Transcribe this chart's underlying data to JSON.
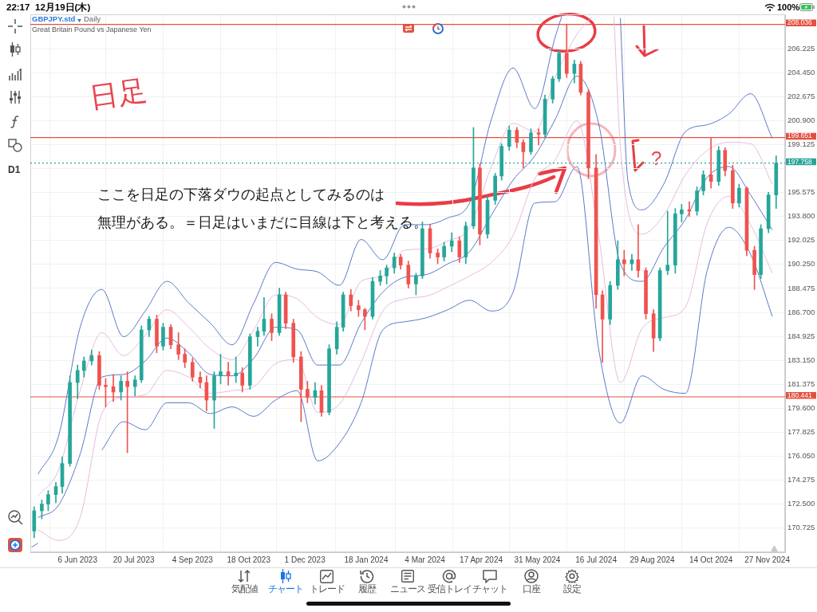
{
  "chart_data": {
    "type": "candlestick",
    "title": "GBPJPY.std",
    "subtitle": "Great Britain Pound vs Japanese Yen",
    "annotations": [
      "Daily",
      "日足",
      "ここを日足の下落ダウの起点としてみるのは",
      "無理がある。＝日足はいまだに目線は下と考える。",
      "?",
      "22:17",
      "12月19日(木)",
      "100%",
      "D1",
      "気配値",
      "チャート",
      "トレード",
      "履歴",
      "ニュース",
      "受信トレイ",
      "チャット",
      "口座",
      "設定"
    ],
    "x": [
      "2023-05-03",
      "2023-05-09",
      "2023-05-14",
      "2023-05-20",
      "2023-05-25",
      "2023-05-31",
      "2023-06-06",
      "2023-06-11",
      "2023-06-17",
      "2023-06-23",
      "2023-06-28",
      "2023-07-04",
      "2023-07-10",
      "2023-07-15",
      "2023-07-21",
      "2023-07-26",
      "2023-08-01",
      "2023-08-07",
      "2023-08-12",
      "2023-08-18",
      "2023-08-24",
      "2023-08-29",
      "2023-09-04",
      "2023-09-10",
      "2023-09-15",
      "2023-09-21",
      "2023-09-26",
      "2023-10-02",
      "2023-10-08",
      "2023-10-13",
      "2023-10-19",
      "2023-10-25",
      "2023-10-30",
      "2023-11-05",
      "2023-11-11",
      "2023-11-16",
      "2023-11-22",
      "2023-11-28",
      "2023-12-03",
      "2023-12-09",
      "2023-12-14",
      "2023-12-20",
      "2023-12-26",
      "2023-12-31",
      "2024-01-06",
      "2024-01-12",
      "2024-01-17",
      "2024-01-23",
      "2024-01-29",
      "2024-02-03",
      "2024-02-09",
      "2024-02-14",
      "2024-02-20",
      "2024-02-26",
      "2024-03-02",
      "2024-03-08",
      "2024-03-14",
      "2024-03-19",
      "2024-03-25",
      "2024-03-31",
      "2024-04-05",
      "2024-04-11",
      "2024-04-16",
      "2024-04-22",
      "2024-04-28",
      "2024-05-03",
      "2024-05-09",
      "2024-05-15",
      "2024-05-20",
      "2024-05-26",
      "2024-06-01",
      "2024-06-06",
      "2024-06-12",
      "2024-06-17",
      "2024-06-23",
      "2024-06-29",
      "2024-07-04",
      "2024-07-10",
      "2024-07-16",
      "2024-07-21",
      "2024-07-27",
      "2024-08-02",
      "2024-08-07",
      "2024-08-13",
      "2024-08-18",
      "2024-08-24",
      "2024-08-30",
      "2024-09-04",
      "2024-09-10",
      "2024-09-16",
      "2024-09-21",
      "2024-09-27",
      "2024-10-03",
      "2024-10-08",
      "2024-10-14",
      "2024-10-20",
      "2024-10-25",
      "2024-10-31",
      "2024-11-05",
      "2024-11-11",
      "2024-11-17",
      "2024-11-22",
      "2024-11-28",
      "2024-12-04"
    ],
    "ohlc": [
      [
        170.5,
        172.3,
        170.0,
        172.0
      ],
      [
        172.0,
        172.8,
        171.4,
        172.5
      ],
      [
        172.5,
        173.5,
        172.0,
        173.2
      ],
      [
        173.2,
        174.1,
        172.6,
        173.8
      ],
      [
        173.8,
        176.0,
        173.3,
        175.5
      ],
      [
        175.5,
        182.0,
        175.3,
        181.5
      ],
      [
        181.5,
        182.8,
        180.3,
        182.4
      ],
      [
        182.4,
        183.4,
        181.9,
        183.1
      ],
      [
        183.1,
        183.9,
        182.8,
        183.5
      ],
      [
        183.5,
        183.8,
        181.0,
        181.3
      ],
      [
        181.3,
        181.8,
        179.7,
        181.2
      ],
      [
        181.2,
        182.1,
        180.1,
        180.8
      ],
      [
        180.8,
        182.0,
        180.2,
        181.6
      ],
      [
        181.6,
        182.3,
        176.3,
        181.2
      ],
      [
        181.2,
        182.0,
        180.5,
        181.7
      ],
      [
        181.7,
        185.7,
        181.5,
        185.4
      ],
      [
        185.4,
        186.4,
        184.9,
        186.2
      ],
      [
        186.2,
        186.5,
        183.7,
        184.2
      ],
      [
        184.2,
        185.9,
        183.9,
        185.6
      ],
      [
        185.6,
        185.8,
        184.0,
        184.3
      ],
      [
        184.3,
        185.2,
        183.2,
        183.6
      ],
      [
        183.6,
        184.0,
        182.6,
        183.0
      ],
      [
        183.0,
        183.3,
        181.6,
        181.9
      ],
      [
        181.9,
        182.3,
        181.1,
        181.5
      ],
      [
        181.5,
        182.0,
        179.4,
        180.2
      ],
      [
        180.2,
        182.3,
        178.1,
        182.0
      ],
      [
        182.0,
        183.6,
        181.4,
        182.3
      ],
      [
        182.3,
        183.0,
        181.3,
        182.0
      ],
      [
        182.0,
        183.4,
        181.5,
        182.2
      ],
      [
        182.2,
        182.6,
        180.8,
        181.3
      ],
      [
        181.3,
        185.1,
        181.0,
        184.9
      ],
      [
        184.9,
        185.6,
        184.2,
        185.3
      ],
      [
        185.3,
        187.8,
        185.0,
        186.2
      ],
      [
        186.2,
        186.6,
        184.6,
        185.2
      ],
      [
        185.2,
        188.5,
        185.0,
        188.0
      ],
      [
        188.0,
        188.2,
        185.5,
        185.9
      ],
      [
        185.9,
        186.2,
        183.0,
        183.4
      ],
      [
        183.4,
        183.8,
        178.6,
        181.0
      ],
      [
        181.0,
        181.6,
        180.0,
        180.4
      ],
      [
        180.4,
        181.5,
        179.9,
        180.9
      ],
      [
        180.9,
        181.3,
        179.0,
        179.3
      ],
      [
        179.3,
        184.3,
        179.1,
        184.0
      ],
      [
        184.0,
        186.0,
        183.6,
        185.6
      ],
      [
        185.6,
        188.2,
        185.3,
        188.0
      ],
      [
        188.0,
        188.4,
        186.8,
        187.2
      ],
      [
        187.2,
        187.6,
        186.4,
        186.9
      ],
      [
        186.9,
        187.0,
        185.4,
        186.4
      ],
      [
        186.4,
        189.3,
        186.2,
        189.0
      ],
      [
        189.0,
        189.8,
        188.7,
        189.4
      ],
      [
        189.4,
        190.2,
        188.8,
        190.0
      ],
      [
        190.0,
        191.1,
        189.6,
        190.8
      ],
      [
        190.8,
        191.0,
        189.9,
        190.2
      ],
      [
        190.2,
        190.5,
        188.5,
        188.8
      ],
      [
        188.8,
        189.6,
        188.0,
        189.4
      ],
      [
        189.4,
        193.4,
        189.2,
        192.9
      ],
      [
        192.9,
        193.2,
        190.7,
        191.1
      ],
      [
        191.1,
        191.4,
        190.3,
        190.8
      ],
      [
        190.8,
        191.9,
        190.5,
        191.6
      ],
      [
        191.6,
        192.6,
        191.2,
        192.0
      ],
      [
        192.0,
        192.3,
        190.4,
        190.8
      ],
      [
        190.8,
        193.4,
        190.3,
        193.1
      ],
      [
        193.1,
        200.4,
        192.9,
        197.4
      ],
      [
        197.4,
        197.7,
        191.7,
        192.5
      ],
      [
        192.5,
        195.3,
        192.2,
        195.0
      ],
      [
        195.0,
        197.0,
        194.7,
        196.8
      ],
      [
        196.8,
        199.2,
        196.5,
        199.0
      ],
      [
        199.0,
        200.5,
        198.7,
        200.2
      ],
      [
        200.2,
        200.4,
        198.9,
        199.3
      ],
      [
        199.3,
        199.5,
        197.4,
        198.6
      ],
      [
        198.6,
        200.3,
        198.4,
        200.0
      ],
      [
        200.0,
        200.3,
        199.1,
        199.9
      ],
      [
        199.9,
        202.8,
        199.7,
        202.5
      ],
      [
        202.5,
        204.2,
        202.2,
        204.0
      ],
      [
        204.0,
        206.1,
        203.8,
        205.9
      ],
      [
        205.9,
        208.0,
        204.1,
        204.4
      ],
      [
        204.4,
        205.4,
        203.7,
        205.1
      ],
      [
        205.1,
        205.3,
        202.8,
        203.0
      ],
      [
        203.0,
        203.2,
        196.6,
        197.4
      ],
      [
        197.4,
        198.4,
        187.0,
        188.0
      ],
      [
        188.0,
        188.3,
        183.0,
        186.2
      ],
      [
        186.2,
        189.0,
        185.8,
        188.7
      ],
      [
        188.7,
        192.0,
        188.4,
        190.6
      ],
      [
        190.6,
        191.3,
        189.4,
        190.3
      ],
      [
        190.3,
        191.0,
        189.8,
        190.6
      ],
      [
        190.6,
        193.2,
        189.3,
        189.8
      ],
      [
        189.8,
        190.0,
        186.2,
        186.6
      ],
      [
        186.6,
        186.9,
        183.8,
        184.8
      ],
      [
        184.8,
        190.0,
        184.6,
        189.8
      ],
      [
        189.8,
        194.2,
        189.5,
        190.2
      ],
      [
        190.2,
        194.4,
        189.6,
        194.0
      ],
      [
        194.0,
        194.7,
        193.4,
        194.3
      ],
      [
        194.3,
        194.9,
        193.8,
        194.2
      ],
      [
        194.2,
        196.0,
        193.9,
        195.7
      ],
      [
        195.7,
        197.2,
        195.4,
        196.9
      ],
      [
        196.9,
        199.6,
        195.9,
        196.4
      ],
      [
        196.4,
        199.0,
        196.1,
        198.7
      ],
      [
        198.7,
        198.9,
        196.8,
        197.2
      ],
      [
        197.2,
        197.6,
        194.4,
        194.8
      ],
      [
        194.8,
        196.2,
        194.5,
        195.9
      ],
      [
        195.9,
        196.0,
        190.9,
        191.3
      ],
      [
        191.3,
        191.6,
        188.4,
        189.5
      ],
      [
        189.5,
        193.2,
        189.2,
        192.9
      ],
      [
        192.9,
        195.6,
        192.6,
        195.4
      ],
      [
        195.4,
        198.3,
        194.4,
        197.758
      ]
    ],
    "colors": [
      "#26a69a",
      "#26a69a",
      "#26a69a",
      "#26a69a",
      "#26a69a",
      "#26a69a",
      "#26a69a",
      "#26a69a",
      "#26a69a",
      "#ef5350",
      "#ef5350",
      "#ef5350",
      "#26a69a",
      "#ef5350",
      "#26a69a",
      "#26a69a",
      "#26a69a",
      "#ef5350",
      "#26a69a",
      "#ef5350",
      "#ef5350",
      "#ef5350",
      "#ef5350",
      "#ef5350",
      "#ef5350",
      "#26a69a",
      "#26a69a",
      "#ef5350",
      "#26a69a",
      "#ef5350",
      "#26a69a",
      "#26a69a",
      "#26a69a",
      "#ef5350",
      "#26a69a",
      "#ef5350",
      "#ef5350",
      "#ef5350",
      "#ef5350",
      "#26a69a",
      "#ef5350",
      "#26a69a",
      "#26a69a",
      "#26a69a",
      "#ef5350",
      "#ef5350",
      "#ef5350",
      "#26a69a",
      "#26a69a",
      "#26a69a",
      "#26a69a",
      "#ef5350",
      "#ef5350",
      "#26a69a",
      "#26a69a",
      "#ef5350",
      "#ef5350",
      "#26a69a",
      "#26a69a",
      "#ef5350",
      "#26a69a",
      "#26a69a",
      "#ef5350",
      "#26a69a",
      "#26a69a",
      "#26a69a",
      "#26a69a",
      "#ef5350",
      "#ef5350",
      "#26a69a",
      "#ef5350",
      "#26a69a",
      "#26a69a",
      "#26a69a",
      "#ef5350",
      "#26a69a",
      "#ef5350",
      "#ef5350",
      "#ef5350",
      "#ef5350",
      "#26a69a",
      "#26a69a",
      "#ef5350",
      "#26a69a",
      "#ef5350",
      "#ef5350",
      "#ef5350",
      "#26a69a",
      "#26a69a",
      "#26a69a",
      "#26a69a",
      "#ef5350",
      "#26a69a",
      "#26a69a",
      "#ef5350",
      "#26a69a",
      "#ef5350",
      "#ef5350",
      "#26a69a",
      "#ef5350",
      "#ef5350",
      "#26a69a",
      "#26a69a",
      "#26a69a"
    ],
    "series": [
      {
        "type": "line",
        "color": "#5b79c9",
        "x": [
          "2023-05-06",
          "2023-05-22",
          "2023-06-08",
          "2023-06-25",
          "2023-07-12",
          "2023-07-29",
          "2023-08-15",
          "2023-09-01",
          "2023-09-18",
          "2023-10-05",
          "2023-10-22",
          "2023-11-08",
          "2023-11-25",
          "2023-12-11",
          "2023-12-28",
          "2024-01-14",
          "2024-01-31",
          "2024-02-17",
          "2024-03-05",
          "2024-03-22",
          "2024-04-08",
          "2024-04-25",
          "2024-05-12",
          "2024-05-29",
          "2024-06-14",
          "2024-06-19",
          "2024-07-01",
          "2024-07-18",
          "2024-08-04",
          "2024-08-10",
          "2024-08-21",
          "2024-09-07",
          "2024-09-24",
          "2024-10-11",
          "2024-10-28",
          "2024-11-14",
          "2024-12-01"
        ],
        "values": [
          174.7,
          177.5,
          185.6,
          188.4,
          184.9,
          186.8,
          189.0,
          187.4,
          185.9,
          184.3,
          187.4,
          190.4,
          189.9,
          189.7,
          188.7,
          192.1,
          190.6,
          193.2,
          193.2,
          193.7,
          194.8,
          201.0,
          204.8,
          201.8,
          207.1,
          208.6,
          null,
          null,
          208.5,
          196.4,
          194.3,
          196.2,
          200.1,
          200.6,
          201.4,
          202.9,
          199.6
        ]
      },
      {
        "type": "line",
        "color": "#e6bcdf",
        "x": [
          "2023-05-06",
          "2023-05-22",
          "2023-06-08",
          "2023-06-25",
          "2023-07-12",
          "2023-07-29",
          "2023-08-15",
          "2023-09-01",
          "2023-09-18",
          "2023-10-05",
          "2023-10-22",
          "2023-11-08",
          "2023-11-25",
          "2023-12-11",
          "2023-12-28",
          "2024-01-14",
          "2024-01-31",
          "2024-02-17",
          "2024-03-05",
          "2024-03-22",
          "2024-04-08",
          "2024-04-25",
          "2024-05-12",
          "2024-05-29",
          "2024-06-14",
          "2024-07-01",
          "2024-07-13",
          "2024-07-18",
          "2024-07-30",
          "2024-08-04",
          "2024-08-21",
          "2024-09-07",
          "2024-09-24",
          "2024-10-11",
          "2024-10-28",
          "2024-11-14",
          "2024-12-01"
        ],
        "values": [
          173.1,
          175.0,
          180.9,
          185.2,
          183.5,
          185.0,
          186.9,
          185.6,
          184.0,
          183.2,
          185.4,
          188.0,
          187.7,
          186.3,
          185.8,
          189.0,
          189.4,
          191.3,
          191.4,
          192.0,
          193.0,
          197.5,
          200.7,
          200.1,
          204.1,
          207.3,
          208.6,
          null,
          208.6,
          199.0,
          192.5,
          193.9,
          196.9,
          198.7,
          199.3,
          199.2,
          196.2
        ]
      },
      {
        "type": "line",
        "color": "#5b79c9",
        "x": [
          "2023-05-06",
          "2023-05-22",
          "2023-06-08",
          "2023-06-25",
          "2023-07-12",
          "2023-07-29",
          "2023-08-15",
          "2023-09-01",
          "2023-09-18",
          "2023-10-05",
          "2023-10-22",
          "2023-11-08",
          "2023-11-25",
          "2023-12-11",
          "2023-12-28",
          "2024-01-14",
          "2024-01-31",
          "2024-02-17",
          "2024-03-05",
          "2024-03-22",
          "2024-04-08",
          "2024-04-25",
          "2024-05-12",
          "2024-05-29",
          "2024-06-14",
          "2024-07-01",
          "2024-07-18",
          "2024-08-04",
          "2024-08-21",
          "2024-09-07",
          "2024-09-24",
          "2024-10-11",
          "2024-10-28",
          "2024-11-14",
          "2024-12-01"
        ],
        "values": [
          171.5,
          172.4,
          176.2,
          181.9,
          182.1,
          183.1,
          184.8,
          183.7,
          182.1,
          182.0,
          183.3,
          185.6,
          185.4,
          182.8,
          182.8,
          185.9,
          188.2,
          189.3,
          189.5,
          190.3,
          191.2,
          193.9,
          196.5,
          198.3,
          201.0,
          204.2,
          200.7,
          190.3,
          189.0,
          191.5,
          193.6,
          196.7,
          197.5,
          195.4,
          192.8
        ]
      },
      {
        "type": "line",
        "color": "#e6bcdf",
        "x": [
          "2023-05-06",
          "2023-05-22",
          "2023-06-08",
          "2023-06-25",
          "2023-07-12",
          "2023-07-29",
          "2023-08-15",
          "2023-09-01",
          "2023-09-18",
          "2023-10-05",
          "2023-10-22",
          "2023-11-08",
          "2023-11-25",
          "2023-12-11",
          "2023-12-28",
          "2024-01-14",
          "2024-01-31",
          "2024-02-17",
          "2024-03-05",
          "2024-03-22",
          "2024-04-08",
          "2024-04-25",
          "2024-05-12",
          "2024-05-29",
          "2024-06-14",
          "2024-07-01",
          "2024-07-18",
          "2024-08-04",
          "2024-08-21",
          "2024-09-07",
          "2024-09-24",
          "2024-10-11",
          "2024-10-28",
          "2024-11-14",
          "2024-12-01"
        ],
        "values": [
          170.6,
          169.8,
          171.5,
          179.2,
          180.4,
          180.6,
          182.4,
          181.9,
          180.7,
          180.9,
          181.2,
          182.9,
          183.2,
          179.3,
          179.9,
          183.0,
          186.8,
          187.7,
          187.9,
          188.6,
          189.4,
          190.4,
          192.4,
          196.6,
          198.0,
          200.9,
          192.4,
          181.5,
          185.5,
          186.3,
          187.1,
          193.3,
          195.3,
          193.2,
          189.6
        ]
      },
      {
        "type": "line",
        "color": "#5b79c9",
        "x": [
          "2023-05-01",
          "2023-05-06",
          "2023-05-22",
          "2023-06-08",
          "2023-06-25",
          "2023-07-12",
          "2023-07-29",
          "2023-08-15",
          "2023-09-01",
          "2023-09-18",
          "2023-10-05",
          "2023-10-22",
          "2023-11-08",
          "2023-11-25",
          "2023-12-11",
          "2023-12-28",
          "2024-01-14",
          "2024-01-31",
          "2024-02-17",
          "2024-03-05",
          "2024-03-22",
          "2024-04-08",
          "2024-04-25",
          "2024-05-12",
          "2024-05-29",
          "2024-06-14",
          "2024-07-01",
          "2024-07-18",
          "2024-08-04",
          "2024-08-21",
          "2024-09-07",
          "2024-09-24",
          "2024-10-11",
          "2024-10-28",
          "2024-11-14",
          "2024-12-01"
        ],
        "values": [
          169.3,
          169.6,
          null,
          null,
          176.5,
          178.6,
          178.0,
          180.0,
          180.0,
          179.2,
          179.7,
          179.0,
          180.2,
          180.9,
          175.7,
          177.0,
          180.0,
          185.4,
          186.0,
          186.3,
          186.9,
          187.6,
          186.8,
          188.2,
          194.8,
          194.9,
          197.5,
          184.0,
          178.5,
          182.0,
          181.0,
          180.7,
          189.8,
          193.0,
          191.0,
          186.4
        ]
      }
    ],
    "ref_lines": [
      {
        "axis": "y",
        "value": 208.036,
        "label": "208.036",
        "color": "#e4503f"
      },
      {
        "axis": "y",
        "value": 199.651,
        "label": "199.651",
        "color": "#e4503f"
      },
      {
        "axis": "y",
        "value": 180.441,
        "label": "180.441",
        "color": "#e4503f"
      },
      {
        "axis": "y",
        "value": 197.758,
        "label": "197.758",
        "color": "#2aa39a",
        "line_style": "dotted"
      }
    ],
    "xlim": [
      "2023-04-30",
      "2024-12-11"
    ],
    "xticks": [
      {
        "value": "2023-06-06",
        "label": "6 Jun 2023"
      },
      {
        "value": "2023-07-20",
        "label": "20 Jul 2023"
      },
      {
        "value": "2023-09-04",
        "label": "4 Sep 2023"
      },
      {
        "value": "2023-10-18",
        "label": "18 Oct 2023"
      },
      {
        "value": "2023-12-01",
        "label": "1 Dec 2023"
      },
      {
        "value": "2024-01-18",
        "label": "18 Jan 2024"
      },
      {
        "value": "2024-03-04",
        "label": "4 Mar 2024"
      },
      {
        "value": "2024-04-17",
        "label": "17 Apr 2024"
      },
      {
        "value": "2024-05-31",
        "label": "31 May 2024"
      },
      {
        "value": "2024-07-16",
        "label": "16 Jul 2024"
      },
      {
        "value": "2024-08-29",
        "label": "29 Aug 2024"
      },
      {
        "value": "2024-10-14",
        "label": "14 Oct 2024"
      },
      {
        "value": "2024-11-27",
        "label": "27 Nov 2024"
      }
    ],
    "ylim": [
      168.93,
      208.78
    ],
    "yticks": [
      170.725,
      {
        "value": 172.5,
        "label": "172.500"
      },
      174.275,
      {
        "value": 176.05,
        "label": "176.050"
      },
      177.825,
      {
        "value": 179.6,
        "label": "179.600"
      },
      181.375,
      {
        "value": 183.15,
        "label": "183.150"
      },
      184.925,
      {
        "value": 186.7,
        "label": "186.700"
      },
      188.475,
      {
        "value": 190.25,
        "label": "190.250"
      },
      192.025,
      {
        "value": 193.8,
        "label": "193.800"
      },
      195.575,
      {
        "value": 197.35,
        "label": null
      },
      199.125,
      {
        "value": 200.9,
        "label": "200.900"
      },
      202.675,
      {
        "value": 204.45,
        "label": "204.450"
      },
      206.225
    ],
    "grid": true
  }
}
